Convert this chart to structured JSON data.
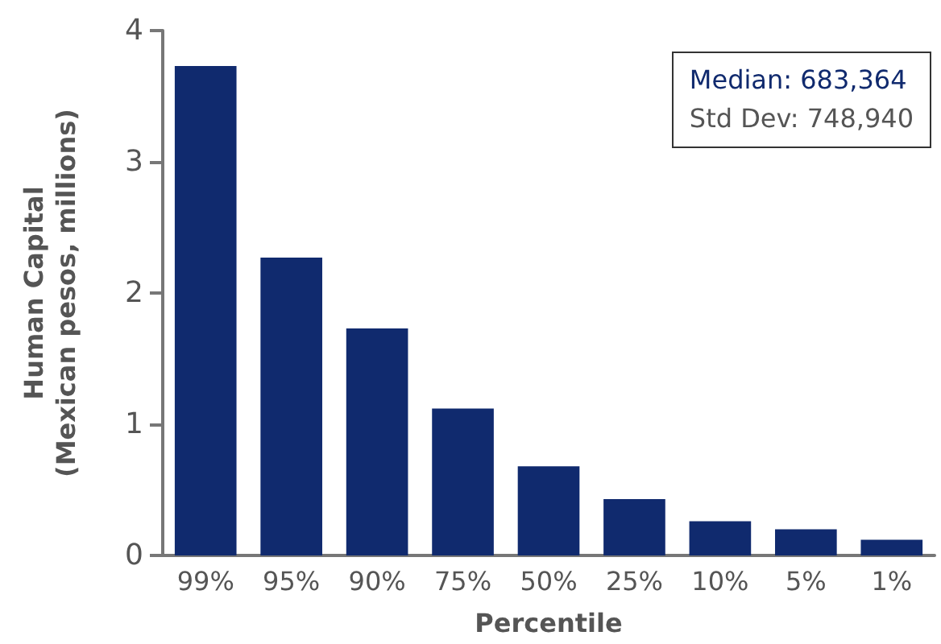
{
  "chart_data": {
    "type": "bar",
    "xlabel": "Percentile",
    "ylabel": "Human Capital\n(Mexican pesos, millions)",
    "categories": [
      "99%",
      "95%",
      "90%",
      "75%",
      "50%",
      "25%",
      "10%",
      "5%",
      "1%"
    ],
    "values": [
      3.73,
      2.27,
      1.73,
      1.12,
      0.68,
      0.43,
      0.26,
      0.2,
      0.12
    ],
    "color": "#102a6e",
    "ylim": [
      0,
      4
    ],
    "yticks": [
      0,
      1,
      2,
      3,
      4
    ],
    "grid": false,
    "annotations": [
      "Median: 683,364",
      "Std Dev: 748,940"
    ]
  }
}
